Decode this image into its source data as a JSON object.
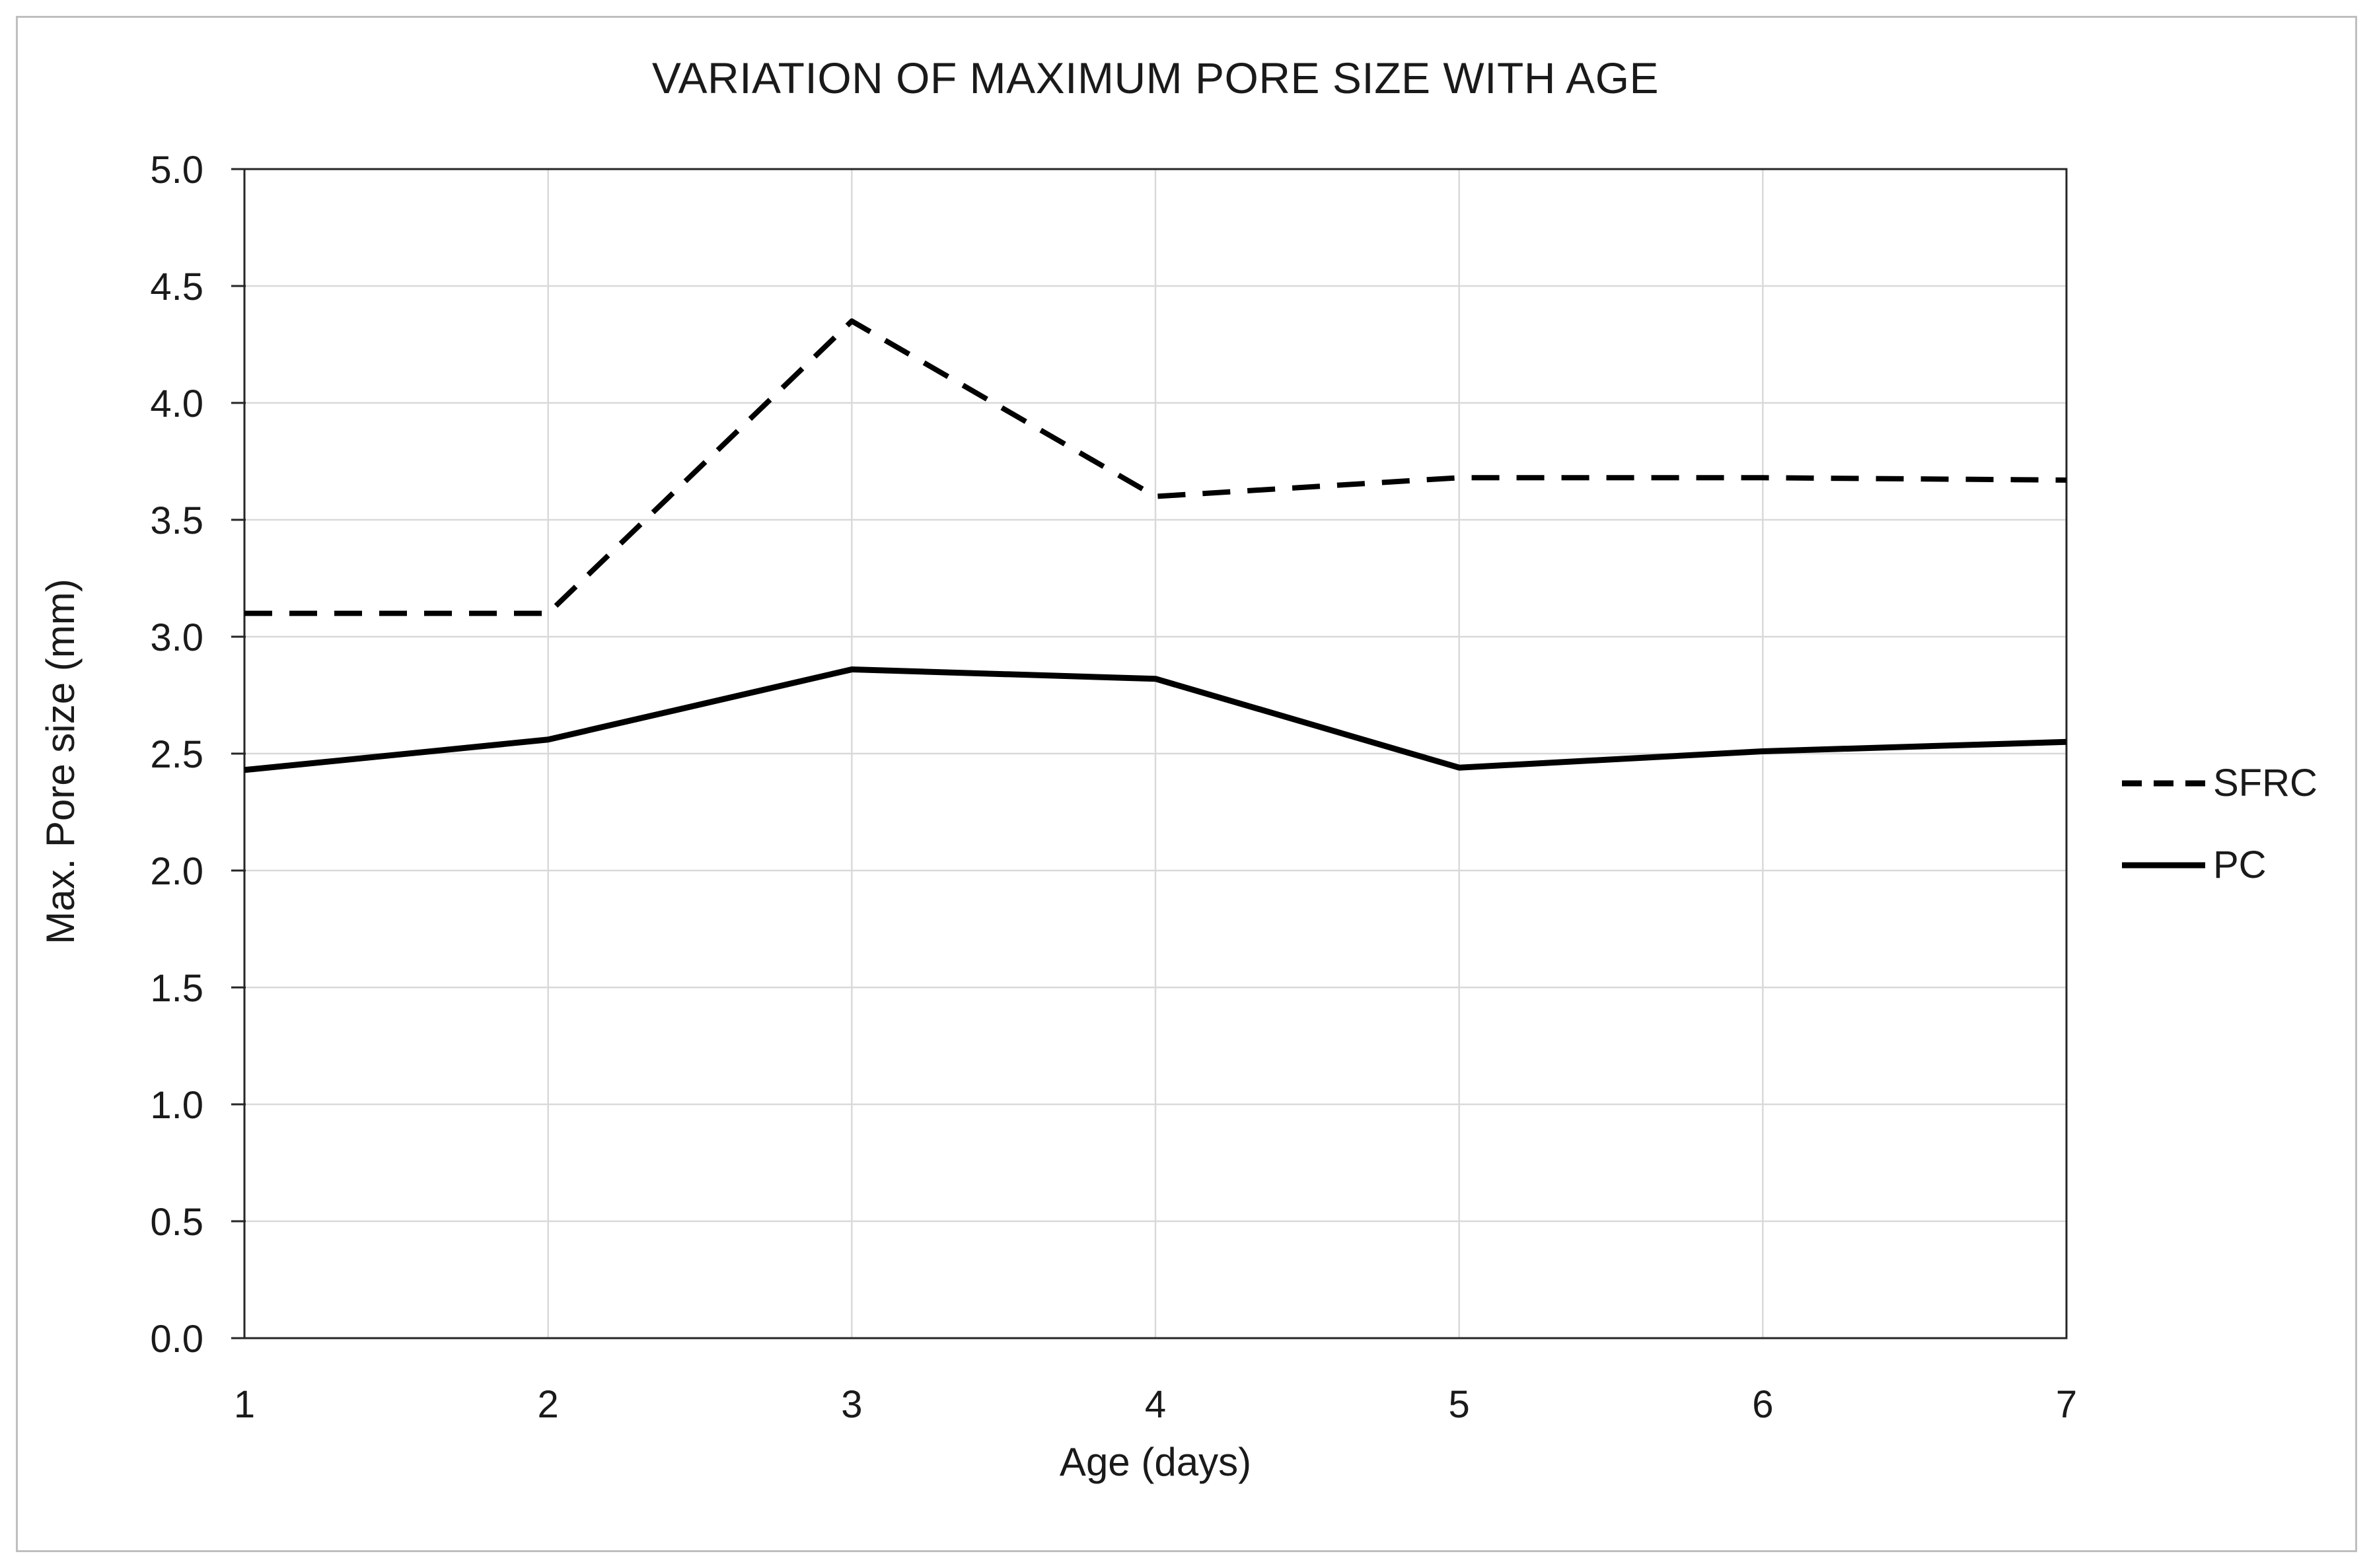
{
  "chart_data": {
    "type": "line",
    "title": "VARIATION OF MAXIMUM PORE SIZE WITH AGE",
    "xlabel": "Age (days)",
    "ylabel": "Max. Pore size (mm)",
    "x": [
      1,
      2,
      3,
      4,
      5,
      6,
      7
    ],
    "series": [
      {
        "name": "SFRC",
        "line_style": "dashed",
        "color": "#000000",
        "values": [
          3.1,
          3.1,
          4.35,
          3.6,
          3.68,
          3.68,
          3.67
        ]
      },
      {
        "name": "PC",
        "line_style": "solid",
        "color": "#000000",
        "values": [
          2.43,
          2.56,
          2.86,
          2.82,
          2.44,
          2.51,
          2.55
        ]
      }
    ],
    "xlim": [
      1,
      7
    ],
    "ylim": [
      0.0,
      5.0
    ],
    "x_tick_labels": [
      "1",
      "2",
      "3",
      "4",
      "5",
      "6",
      "7"
    ],
    "y_tick_labels": [
      "0.0",
      "0.5",
      "1.0",
      "1.5",
      "2.0",
      "2.5",
      "3.0",
      "3.5",
      "4.0",
      "4.5",
      "5.0"
    ],
    "grid": true,
    "legend_position": "right",
    "colors": {
      "series": "#000000",
      "gridline": "#d9d9d9",
      "axis_border": "#262626",
      "text": "#1a1a1a",
      "figure_border": "#bfbfbf"
    }
  },
  "legend": {
    "items": [
      {
        "label": "SFRC",
        "line_style": "dashed"
      },
      {
        "label": "PC",
        "line_style": "solid"
      }
    ]
  }
}
